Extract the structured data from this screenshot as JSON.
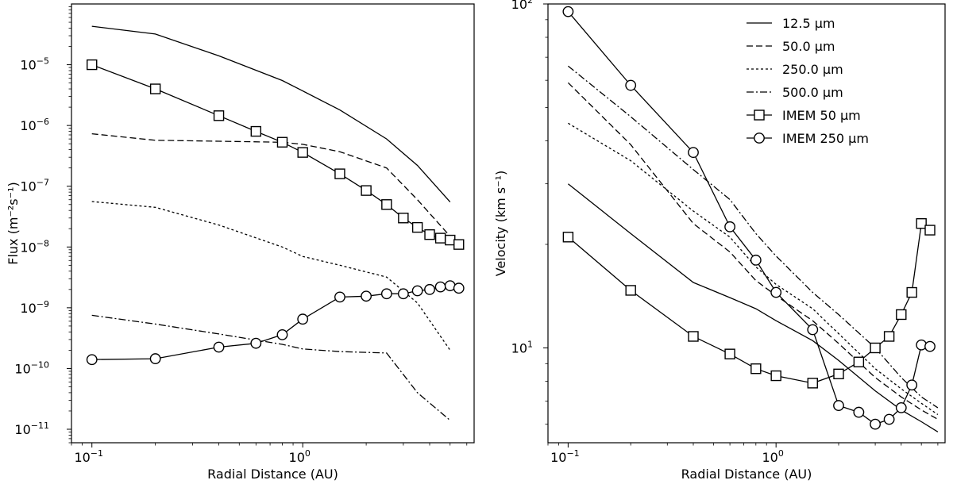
{
  "chart_data": [
    {
      "type": "line",
      "panel": "left",
      "xscale": "log",
      "yscale": "log",
      "xlabel": "Radial Distance (AU)",
      "ylabel": "Flux (m⁻²s⁻¹)",
      "xlim": [
        0.08,
        6.5
      ],
      "ylim": [
        6e-12,
        0.0001
      ],
      "x_ticks": [
        {
          "value": 0.1,
          "base": "10",
          "exp": "−1"
        },
        {
          "value": 1,
          "base": "10",
          "exp": "0"
        }
      ],
      "y_ticks": [
        {
          "value": 1e-11,
          "base": "10",
          "exp": "−11"
        },
        {
          "value": 1e-10,
          "base": "10",
          "exp": "−10"
        },
        {
          "value": 1e-09,
          "base": "10",
          "exp": "−9"
        },
        {
          "value": 1e-08,
          "base": "10",
          "exp": "−8"
        },
        {
          "value": 1e-07,
          "base": "10",
          "exp": "−7"
        },
        {
          "value": 1e-06,
          "base": "10",
          "exp": "−6"
        },
        {
          "value": 1e-05,
          "base": "10",
          "exp": "−5"
        }
      ],
      "series": [
        {
          "name": "12.5 µm",
          "style": "solid",
          "marker": "none",
          "x": [
            0.1,
            0.2,
            0.4,
            0.8,
            1.0,
            1.5,
            2.5,
            3.5,
            5.0
          ],
          "y": [
            4.3e-05,
            3.2e-05,
            1.4e-05,
            5.5e-06,
            3.7e-06,
            1.8e-06,
            6e-07,
            2.2e-07,
            5.5e-08
          ]
        },
        {
          "name": "50.0 µm",
          "style": "dashed",
          "marker": "none",
          "x": [
            0.1,
            0.2,
            0.4,
            0.8,
            1.0,
            1.5,
            2.5,
            3.5,
            5.0
          ],
          "y": [
            7.3e-07,
            5.7e-07,
            5.5e-07,
            5.3e-07,
            4.9e-07,
            3.7e-07,
            2e-07,
            6e-08,
            1.5e-08
          ]
        },
        {
          "name": "250.0 µm",
          "style": "dotted",
          "marker": "none",
          "x": [
            0.1,
            0.2,
            0.4,
            0.8,
            1.0,
            1.5,
            2.5,
            3.5,
            5.0
          ],
          "y": [
            5.6e-08,
            4.5e-08,
            2.3e-08,
            1e-08,
            7e-09,
            5e-09,
            3.2e-09,
            1.2e-09,
            2e-10
          ]
        },
        {
          "name": "500.0 µm",
          "style": "dashdot",
          "marker": "none",
          "x": [
            0.1,
            0.2,
            0.4,
            0.8,
            1.0,
            1.5,
            2.5,
            3.5,
            5.0
          ],
          "y": [
            7.5e-10,
            5.4e-10,
            3.7e-10,
            2.5e-10,
            2.1e-10,
            1.9e-10,
            1.8e-10,
            4e-11,
            1.4e-11
          ]
        },
        {
          "name": "IMEM 50 µm",
          "style": "solid",
          "marker": "square",
          "x": [
            0.1,
            0.2,
            0.4,
            0.6,
            0.8,
            1.0,
            1.5,
            2.0,
            2.5,
            3.0,
            3.5,
            4.0,
            4.5,
            5.0,
            5.5
          ],
          "y": [
            1e-05,
            4e-06,
            1.45e-06,
            8e-07,
            5.3e-07,
            3.6e-07,
            1.6e-07,
            8.5e-08,
            5e-08,
            3e-08,
            2.1e-08,
            1.6e-08,
            1.4e-08,
            1.3e-08,
            1.1e-08
          ]
        },
        {
          "name": "IMEM 250 µm",
          "style": "solid",
          "marker": "circle",
          "x": [
            0.1,
            0.2,
            0.4,
            0.6,
            0.8,
            1.0,
            1.5,
            2.0,
            2.5,
            3.0,
            3.5,
            4.0,
            4.5,
            5.0,
            5.5
          ],
          "y": [
            1.4e-10,
            1.45e-10,
            2.25e-10,
            2.6e-10,
            3.6e-10,
            6.5e-10,
            1.5e-09,
            1.55e-09,
            1.7e-09,
            1.7e-09,
            1.9e-09,
            2e-09,
            2.2e-09,
            2.3e-09,
            2.1e-09
          ]
        }
      ]
    },
    {
      "type": "line",
      "panel": "right",
      "xscale": "log",
      "yscale": "log",
      "xlabel": "Radial Distance (AU)",
      "ylabel": "Velocity (km s⁻¹)",
      "xlim": [
        0.08,
        6.5
      ],
      "ylim": [
        5.3,
        100
      ],
      "x_ticks": [
        {
          "value": 0.1,
          "base": "10",
          "exp": "−1"
        },
        {
          "value": 1,
          "base": "10",
          "exp": "0"
        }
      ],
      "y_ticks": [
        {
          "value": 10,
          "base": "10",
          "exp": "1"
        },
        {
          "value": 100,
          "base": "10",
          "exp": "2"
        }
      ],
      "legend": "top-right",
      "series": [
        {
          "name": "12.5 µm",
          "style": "solid",
          "marker": "none",
          "x": [
            0.1,
            0.2,
            0.4,
            0.6,
            0.8,
            1.0,
            1.5,
            2.0,
            3.0,
            4.0,
            5.0,
            6.0
          ],
          "y": [
            30,
            21.5,
            15.5,
            14,
            13,
            12,
            10.5,
            9.2,
            7.5,
            6.6,
            6.1,
            5.7
          ]
        },
        {
          "name": "50.0 µm",
          "style": "dashed",
          "marker": "none",
          "x": [
            0.1,
            0.2,
            0.4,
            0.6,
            0.8,
            1.0,
            1.5,
            2.0,
            3.0,
            4.0,
            5.0,
            6.0
          ],
          "y": [
            59,
            39,
            23,
            19,
            15.7,
            14.2,
            12,
            10.3,
            8.2,
            7.2,
            6.6,
            6.2
          ]
        },
        {
          "name": "250.0 µm",
          "style": "dotted",
          "marker": "none",
          "x": [
            0.1,
            0.2,
            0.4,
            0.6,
            0.8,
            1.0,
            1.5,
            2.0,
            3.0,
            4.0,
            5.0,
            6.0
          ],
          "y": [
            45,
            35,
            25,
            21,
            17.2,
            15.3,
            13,
            11,
            8.7,
            7.6,
            6.9,
            6.4
          ]
        },
        {
          "name": "500.0 µm",
          "style": "dashdot",
          "marker": "none",
          "x": [
            0.1,
            0.2,
            0.4,
            0.6,
            0.8,
            1.0,
            1.5,
            2.0,
            3.0,
            4.0,
            5.0,
            6.0
          ],
          "y": [
            66,
            47,
            33,
            27,
            21.5,
            18.5,
            14.5,
            12.5,
            10,
            8.2,
            7.2,
            6.7
          ]
        },
        {
          "name": "IMEM 50 µm",
          "style": "solid",
          "marker": "square",
          "x": [
            0.1,
            0.2,
            0.4,
            0.6,
            0.8,
            1.0,
            1.5,
            2.0,
            2.5,
            3.0,
            3.5,
            4.0,
            4.5,
            5.0,
            5.5
          ],
          "y": [
            21,
            14.7,
            10.8,
            9.6,
            8.7,
            8.3,
            7.9,
            8.4,
            9.1,
            10,
            10.8,
            12.5,
            14.5,
            23,
            22
          ]
        },
        {
          "name": "IMEM 250 µm",
          "style": "solid",
          "marker": "circle",
          "x": [
            0.1,
            0.2,
            0.4,
            0.6,
            0.8,
            1.0,
            1.5,
            2.0,
            2.5,
            3.0,
            3.5,
            4.0,
            4.5,
            5.0,
            5.5
          ],
          "y": [
            95,
            58,
            37,
            22.5,
            18,
            14.5,
            11.3,
            6.8,
            6.5,
            6.0,
            6.2,
            6.7,
            7.8,
            10.2,
            10.1
          ]
        }
      ]
    }
  ],
  "colors": {
    "line": "#000000",
    "background": "#ffffff"
  }
}
